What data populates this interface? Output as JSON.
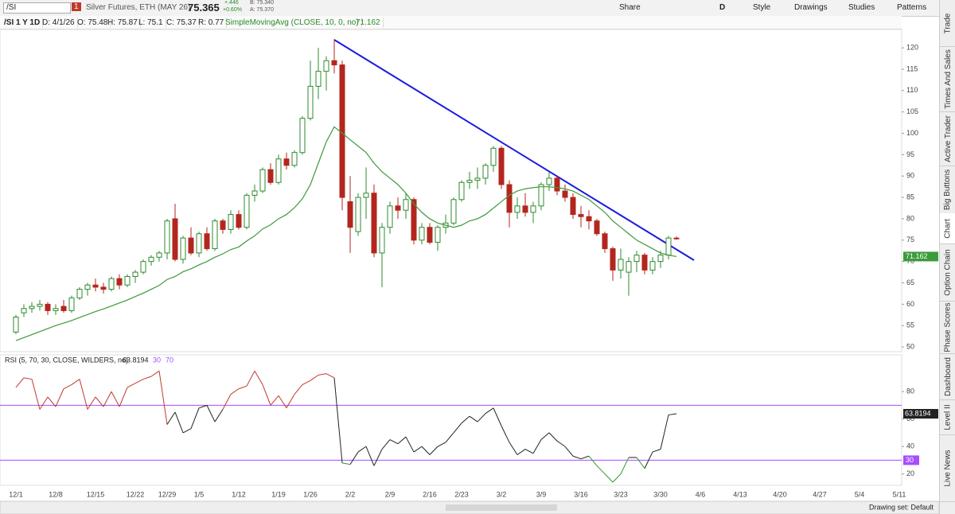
{
  "toolbar": {
    "symbol": "/SI",
    "alert_count": "1",
    "description": "Silver Futures, ETH (MAY 26)",
    "last": "75.365",
    "change": "+.446",
    "change_pct": "+0.60%",
    "bid": "B: 75.340",
    "ask": "A: 75.370",
    "buttons": [
      "Share",
      "D",
      "Style",
      "Drawings",
      "Studies",
      "Patterns"
    ]
  },
  "chart_header": {
    "symbol": "/SI 1 Y 1D",
    "date": "D: 4/1/26",
    "open": "O: 75.48",
    "high": "H: 75.87",
    "low": "L: 75.1",
    "close": "C: 75.37",
    "range": "R: 0.77",
    "study": "SimpleMovingAvg (CLOSE, 10, 0, no)",
    "study_value": "71.162"
  },
  "chart_data": {
    "type": "candlestick",
    "categories": [
      "12/1",
      null,
      null,
      null,
      null,
      "12/8",
      null,
      null,
      null,
      null,
      "12/15",
      null,
      null,
      null,
      null,
      "12/22",
      null,
      null,
      null,
      "12/29",
      null,
      null,
      null,
      "1/5",
      null,
      null,
      null,
      null,
      "1/12",
      null,
      null,
      null,
      null,
      "1/19",
      null,
      null,
      null,
      "1/26",
      null,
      null,
      null,
      null,
      "2/2",
      null,
      null,
      null,
      null,
      "2/9",
      null,
      null,
      null,
      null,
      "2/16",
      null,
      null,
      null,
      "2/23",
      null,
      null,
      null,
      null,
      "3/2",
      null,
      null,
      null,
      null,
      "3/9",
      null,
      null,
      null,
      null,
      "3/16",
      null,
      null,
      null,
      null,
      "3/23",
      null,
      null,
      null,
      null,
      "3/30",
      null,
      null,
      null,
      null,
      "4/6",
      null,
      null,
      null,
      null,
      "4/13",
      null,
      null,
      null,
      null,
      "4/20",
      null,
      null,
      null,
      null,
      "4/27",
      null,
      null,
      null,
      null,
      "5/4",
      null,
      null,
      null,
      null,
      "5/11"
    ],
    "open": [
      53.5,
      58,
      59,
      59.5,
      60,
      58.5,
      59.5,
      58.5,
      61.5,
      63.5,
      64.5,
      64,
      63.5,
      66,
      64.5,
      66.5,
      67.5,
      70,
      71,
      72,
      80,
      70.5,
      75.5,
      72,
      76.5,
      73,
      79.5,
      77.5,
      81,
      78,
      85.5,
      86.5,
      91.5,
      88.5,
      94,
      92.5,
      95.5,
      103.5,
      111,
      114.5,
      117,
      116,
      84,
      77,
      85,
      86,
      72,
      78,
      83,
      82,
      84.5,
      75,
      78,
      74.5,
      78,
      79,
      84.5,
      88.5,
      89,
      89.5,
      92.5,
      96.5,
      88,
      81.5,
      83,
      81.5,
      83,
      88,
      89.5,
      86.5,
      85,
      81,
      80.5,
      79.5,
      76.5,
      73,
      68,
      67.5,
      70,
      71.5,
      68,
      70,
      71.5,
      75.48,
      null,
      null,
      null,
      null,
      null,
      null,
      null,
      null,
      null,
      null,
      null,
      null,
      null,
      null,
      null,
      null,
      null,
      null,
      null,
      null,
      null,
      null,
      null,
      null,
      null,
      null,
      null,
      null
    ],
    "high": [
      57.5,
      60,
      60.5,
      61,
      60.5,
      60,
      61,
      62,
      64,
      65,
      66,
      65,
      66.5,
      67,
      67,
      68,
      70.5,
      71.5,
      72.5,
      80,
      83.5,
      76,
      78,
      77,
      78,
      80,
      80,
      82,
      82,
      86,
      88,
      92,
      93,
      95,
      95.5,
      96,
      104,
      117,
      120,
      118,
      122,
      117,
      90,
      86,
      92,
      88,
      79,
      84,
      85,
      86,
      85,
      79,
      79,
      78.5,
      81,
      85,
      89,
      91,
      92,
      93,
      97,
      97,
      89,
      85,
      86,
      84,
      88.5,
      91,
      90,
      88,
      86,
      83,
      82,
      80,
      77,
      73.5,
      73,
      71,
      72.5,
      72,
      71,
      72.5,
      76,
      75.87,
      null,
      null,
      null,
      null,
      null,
      null,
      null,
      null,
      null,
      null,
      null,
      null,
      null,
      null,
      null,
      null,
      null,
      null,
      null,
      null,
      null,
      null,
      null,
      null,
      null,
      null,
      null,
      null
    ],
    "low": [
      53,
      57,
      58,
      58.5,
      57.5,
      57.5,
      58,
      58,
      61,
      62,
      63,
      62.5,
      63,
      63.5,
      64,
      65,
      67,
      69,
      70,
      70.5,
      70,
      69.5,
      71.5,
      71,
      72.5,
      72.5,
      76.5,
      76.5,
      77.5,
      77.5,
      84,
      86,
      88,
      88,
      91.5,
      92,
      95,
      103,
      108,
      110,
      114,
      82,
      72,
      76,
      80,
      71,
      64,
      76.5,
      80,
      80,
      74,
      74,
      74,
      72.5,
      76.5,
      78.5,
      84,
      87,
      87,
      88,
      91,
      87,
      78,
      80,
      80.5,
      79,
      82,
      86.5,
      85.5,
      84,
      80,
      78,
      77.5,
      76,
      72,
      65.5,
      66,
      62,
      67.5,
      67,
      67,
      68.5,
      70.5,
      75.1,
      null,
      null,
      null,
      null,
      null,
      null,
      null,
      null,
      null,
      null,
      null,
      null,
      null,
      null,
      null,
      null,
      null,
      null,
      null,
      null,
      null,
      null,
      null,
      null,
      null,
      null,
      null,
      null
    ],
    "close": [
      57,
      59,
      59.5,
      60,
      58.5,
      59,
      58.5,
      61.5,
      63.5,
      64.5,
      64,
      63.5,
      66,
      64.5,
      66.5,
      67.5,
      70,
      71,
      72,
      79.5,
      70.5,
      75.5,
      72,
      76.5,
      73,
      79.5,
      77.5,
      81,
      78,
      85.5,
      86.5,
      91.5,
      88.5,
      94,
      92.5,
      95.5,
      103.5,
      111,
      114.5,
      117,
      116,
      85,
      78,
      85,
      86,
      72,
      78,
      83,
      82,
      84.5,
      75,
      78,
      74.5,
      78,
      79,
      84.5,
      88.5,
      89,
      89.5,
      92.5,
      96.5,
      88,
      81.5,
      83,
      81.5,
      83,
      88,
      89.5,
      86.5,
      85,
      81,
      80.5,
      79.5,
      76.5,
      73,
      68,
      70.5,
      70,
      71.5,
      68,
      70,
      71.5,
      75.5,
      75.37,
      null,
      null,
      null,
      null,
      null,
      null,
      null,
      null,
      null,
      null,
      null,
      null,
      null,
      null,
      null,
      null,
      null,
      null,
      null,
      null,
      null,
      null,
      null,
      null,
      null,
      null,
      null,
      null
    ],
    "up_color": "#2e8b2e",
    "down_color": "#b3261e",
    "series": [
      {
        "color": "#3c9a3c",
        "values": [
          51.5,
          52.2,
          52.9,
          53.6,
          54.3,
          55,
          55.6,
          56.2,
          56.9,
          57.6,
          58.3,
          58.9,
          59.6,
          60.3,
          61,
          61.8,
          62.6,
          63.5,
          64.4,
          65.8,
          66.5,
          67.6,
          68.3,
          69.2,
          70,
          71,
          71.8,
          72.8,
          73.4,
          74.8,
          76,
          77.6,
          78.6,
          80,
          81,
          82.6,
          84.7,
          88,
          93,
          98,
          101.5,
          100,
          98.5,
          97,
          95.5,
          93,
          91,
          89.5,
          88,
          86,
          83.5,
          81.5,
          80,
          79,
          78.5,
          78,
          78.5,
          79.5,
          80,
          81,
          82.5,
          84,
          85.5,
          86.5,
          87,
          87.3,
          87.5,
          87.5,
          87.3,
          87,
          86.5,
          85.5,
          84.5,
          83,
          81.5,
          79.5,
          78,
          76.5,
          75,
          74,
          73,
          72,
          71.5,
          71.162,
          null,
          null,
          null,
          null,
          null,
          null,
          null,
          null,
          null,
          null,
          null,
          null,
          null,
          null,
          null,
          null,
          null,
          null,
          null,
          null,
          null,
          null,
          null,
          null,
          null,
          null,
          null,
          null
        ]
      }
    ],
    "ylim": [
      48.9,
      124.3
    ],
    "yticks": [
      50,
      55,
      60,
      65,
      70,
      75,
      80,
      85,
      90,
      95,
      100,
      105,
      110,
      115,
      120
    ],
    "rsi": {
      "type": "line",
      "title": "RSI (5, 70, 30, CLOSE, WILDERS, no)",
      "values": [
        83,
        90,
        89,
        67,
        76,
        69,
        82,
        85,
        89,
        67,
        76,
        69,
        80,
        69,
        83,
        86,
        89,
        91,
        95,
        56,
        65,
        50,
        53,
        68,
        70,
        58,
        67,
        78,
        82,
        84,
        95,
        85,
        70,
        77,
        68,
        78,
        85,
        88,
        92,
        93,
        90,
        28,
        27,
        36,
        40,
        26,
        38,
        45,
        42,
        47,
        36,
        40,
        34,
        40,
        43,
        50,
        57,
        62,
        58,
        64,
        68,
        55,
        43,
        34,
        38,
        35,
        45,
        50,
        44,
        40,
        33,
        31,
        33,
        26,
        20,
        14,
        20,
        32,
        32,
        24,
        36,
        38,
        63,
        63.8194,
        null,
        null,
        null,
        null,
        null,
        null,
        null,
        null,
        null,
        null,
        null,
        null,
        null,
        null,
        null,
        null,
        null,
        null,
        null,
        null,
        null,
        null,
        null,
        null,
        null,
        null,
        null,
        null
      ],
      "color": "#222222",
      "overbought_color": "#c0392b",
      "oversold_color": "#2a9d2a",
      "levels": [
        30,
        70
      ],
      "level_color": "#a64dff",
      "ylim": [
        11.7,
        106.7
      ],
      "yticks": [
        20,
        40,
        60,
        80
      ]
    }
  },
  "side_tabs": [
    "Trade",
    "Times And Sales",
    "Active Trader",
    "Big Buttons",
    "Chart",
    "Option Chain",
    "Phase Scores",
    "Dashboard",
    "Level II",
    "Live News"
  ],
  "status": {
    "drawing_set": "Drawing set: Default"
  }
}
